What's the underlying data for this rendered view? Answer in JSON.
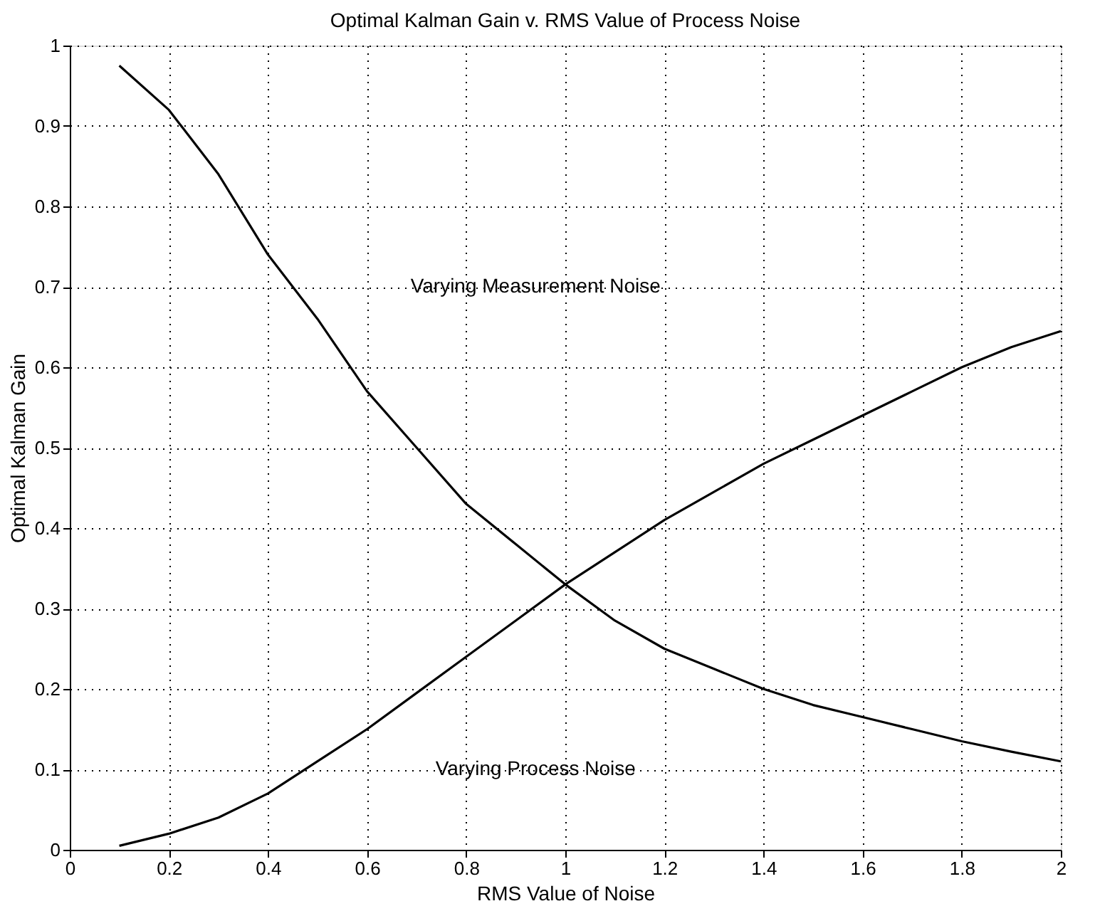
{
  "chart_data": {
    "type": "line",
    "title": "Optimal Kalman Gain v. RMS Value of Process Noise",
    "xlabel": "RMS Value of Noise",
    "ylabel": "Optimal Kalman Gain",
    "series": [
      {
        "color": "#000000",
        "x": [
          0.1,
          0.2,
          0.3,
          0.4,
          0.5,
          0.6,
          0.7,
          0.8,
          0.9,
          1.0,
          1.1,
          1.2,
          1.3,
          1.4,
          1.5,
          1.6,
          1.7,
          1.8,
          1.9,
          2.0
        ],
        "values": [
          0.975,
          0.92,
          0.84,
          0.74,
          0.66,
          0.57,
          0.5,
          0.43,
          0.38,
          0.33,
          0.285,
          0.25,
          0.225,
          0.2,
          0.18,
          0.165,
          0.15,
          0.135,
          0.122,
          0.11
        ]
      },
      {
        "color": "#000000",
        "x": [
          0.1,
          0.2,
          0.3,
          0.4,
          0.5,
          0.6,
          0.7,
          0.8,
          0.9,
          1.0,
          1.1,
          1.2,
          1.3,
          1.4,
          1.5,
          1.6,
          1.7,
          1.8,
          1.9,
          2.0
        ],
        "values": [
          0.005,
          0.02,
          0.04,
          0.07,
          0.11,
          0.15,
          0.195,
          0.24,
          0.285,
          0.33,
          0.37,
          0.41,
          0.445,
          0.48,
          0.51,
          0.54,
          0.57,
          0.6,
          0.625,
          0.645
        ]
      }
    ],
    "annotations": [
      "Varying Measurement Noise",
      "Varying Process Noise"
    ],
    "xlim": [
      0,
      2
    ],
    "xticks": [
      0,
      0.2,
      0.4,
      0.6,
      0.8,
      1,
      1.2,
      1.4,
      1.6,
      1.8,
      2
    ],
    "ylim": [
      0,
      1
    ],
    "yticks": [
      0,
      0.1,
      0.2,
      0.3,
      0.4,
      0.5,
      0.6,
      0.7,
      0.8,
      0.9,
      1
    ],
    "grid": true,
    "line_style": "solid",
    "marker": "none"
  }
}
